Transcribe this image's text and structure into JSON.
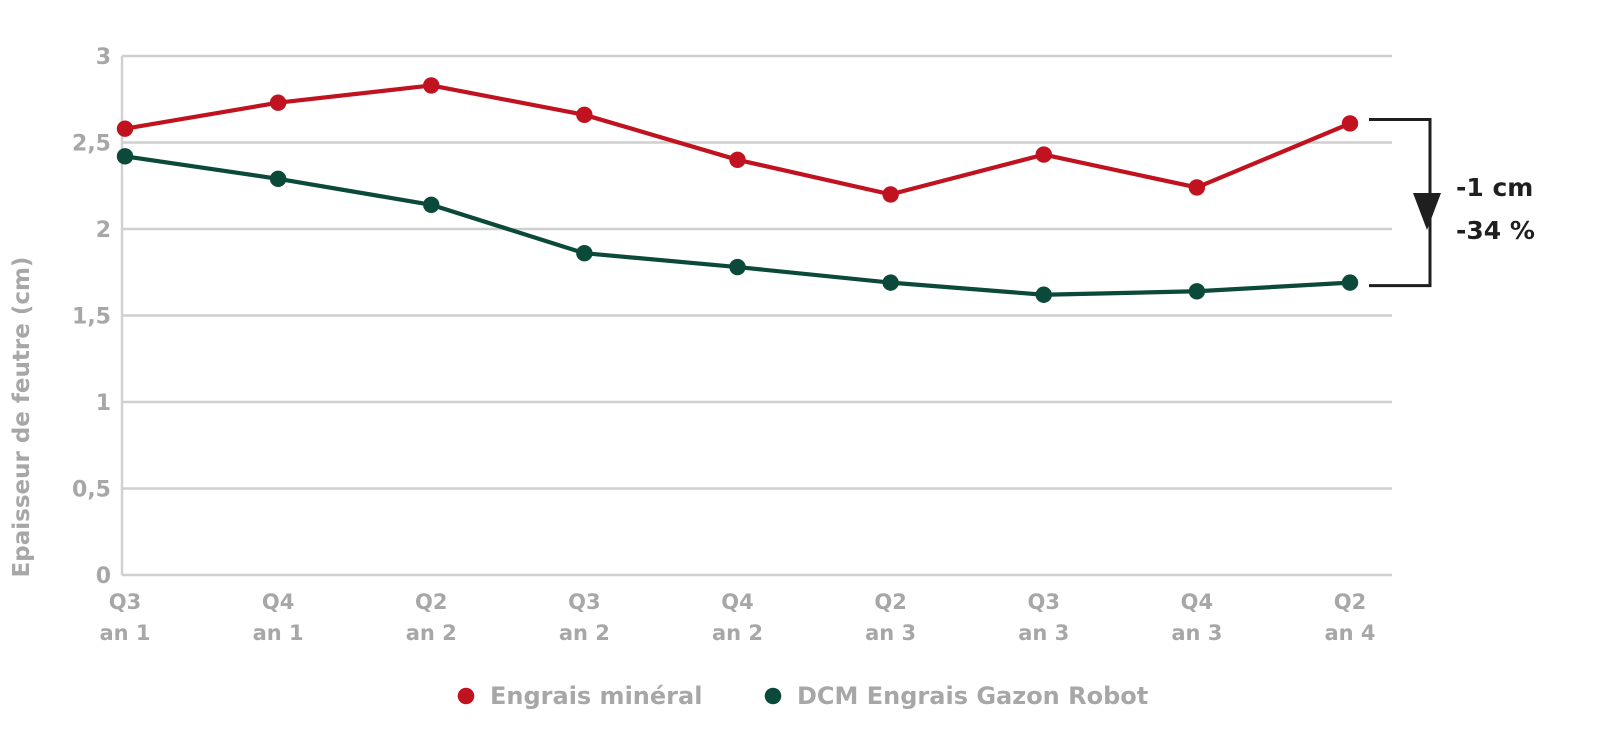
{
  "chart_data": {
    "type": "line",
    "title": "",
    "xlabel": "",
    "ylabel": "Epaisseur de feutre (cm)",
    "ylim": [
      0,
      3
    ],
    "yticks": [
      {
        "value": 0,
        "label": "0"
      },
      {
        "value": 0.5,
        "label": "0,5"
      },
      {
        "value": 1,
        "label": "1"
      },
      {
        "value": 1.5,
        "label": "1,5"
      },
      {
        "value": 2,
        "label": "2"
      },
      {
        "value": 2.5,
        "label": "2,5"
      },
      {
        "value": 3,
        "label": "3"
      }
    ],
    "categories": [
      [
        "Q3",
        "an 1"
      ],
      [
        "Q4",
        "an 1"
      ],
      [
        "Q2",
        "an 2"
      ],
      [
        "Q3",
        "an 2"
      ],
      [
        "Q4",
        "an 2"
      ],
      [
        "Q2",
        "an 3"
      ],
      [
        "Q3",
        "an 3"
      ],
      [
        "Q4",
        "an 3"
      ],
      [
        "Q2",
        "an 4"
      ]
    ],
    "series": [
      {
        "name": "Engrais minéral",
        "color": "#c1121f",
        "values": [
          2.58,
          2.73,
          2.83,
          2.66,
          2.4,
          2.2,
          2.43,
          2.24,
          2.61
        ]
      },
      {
        "name": "DCM Engrais Gazon Robot",
        "color": "#0b4a3a",
        "values": [
          2.42,
          2.29,
          2.14,
          1.86,
          1.78,
          1.69,
          1.62,
          1.64,
          1.69
        ]
      }
    ],
    "annotation": {
      "lines": [
        "-1 cm",
        "-34 %"
      ],
      "color": "#1f1f1f"
    },
    "grid": true,
    "legend_position": "bottom"
  }
}
